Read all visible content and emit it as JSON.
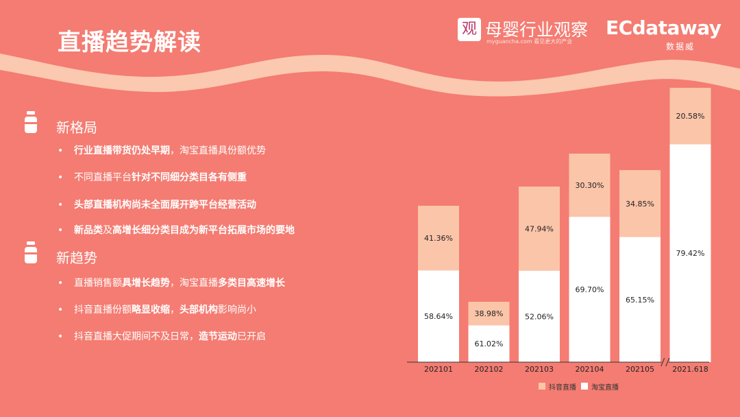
{
  "title": "直播趋势解读",
  "logos": {
    "left_badge": "观",
    "left_name": "母婴行业观察",
    "left_sub": "myguancha.com 看见更大的产业",
    "right_name": "ECdataway",
    "right_sub": "数据威"
  },
  "sections": [
    {
      "heading": "新格局",
      "bullets": [
        [
          {
            "t": "行业直播带货仍处早期",
            "b": true
          },
          {
            "t": "，淘宝直播具份额优势",
            "b": false
          }
        ],
        [
          {
            "t": "不同直播平台",
            "b": false
          },
          {
            "t": "针对不同细分类目各有侧重",
            "b": true
          }
        ],
        [
          {
            "t": "头部直播机构尚未全面展开跨平台经营活动",
            "b": true
          }
        ],
        [
          {
            "t": "新品类",
            "b": true
          },
          {
            "t": "及",
            "b": false
          },
          {
            "t": "高增长细分类目成为新平台拓展市场的要地",
            "b": true
          }
        ]
      ]
    },
    {
      "heading": "新趋势",
      "bullets": [
        [
          {
            "t": "直播销售额",
            "b": false
          },
          {
            "t": "具增长趋势",
            "b": true
          },
          {
            "t": "，淘宝直播",
            "b": false
          },
          {
            "t": "多类目高速增长",
            "b": true
          }
        ],
        [
          {
            "t": "抖音直播份额",
            "b": false
          },
          {
            "t": "略显收缩",
            "b": true
          },
          {
            "t": "，",
            "b": false
          },
          {
            "t": "头部机构",
            "b": true
          },
          {
            "t": "影响尚小",
            "b": false
          }
        ],
        [
          {
            "t": "抖音直播大促期间不及日常，",
            "b": false
          },
          {
            "t": "造节运动",
            "b": true
          },
          {
            "t": "已开启",
            "b": false
          }
        ]
      ]
    }
  ],
  "chart_data": {
    "type": "bar",
    "stacked": true,
    "categories": [
      "202101",
      "202102",
      "202103",
      "202104",
      "202105",
      "2021.618"
    ],
    "axis_break_before": "2021.618",
    "relative_total_height": [
      0.57,
      0.22,
      0.64,
      0.76,
      0.7,
      1.0
    ],
    "series": [
      {
        "name": "淘宝直播",
        "values": [
          58.64,
          61.02,
          52.06,
          69.7,
          65.15,
          79.42
        ],
        "labels": [
          "58.64%",
          "61.02%",
          "52.06%",
          "69.70%",
          "65.15%",
          "79.42%"
        ],
        "color": "#ffffff"
      },
      {
        "name": "抖音直播",
        "values": [
          41.36,
          38.98,
          47.94,
          30.3,
          34.85,
          20.58
        ],
        "labels": [
          "41.36%",
          "38.98%",
          "47.94%",
          "30.30%",
          "34.85%",
          "20.58%"
        ],
        "color": "#fbc5a9"
      }
    ],
    "legend": [
      "抖音直播",
      "淘宝直播"
    ],
    "legend_position": "bottom"
  },
  "colors": {
    "background": "#f47c72",
    "wave": "#fbc8b0",
    "taobao": "#ffffff",
    "douyin": "#fbc5a9"
  }
}
